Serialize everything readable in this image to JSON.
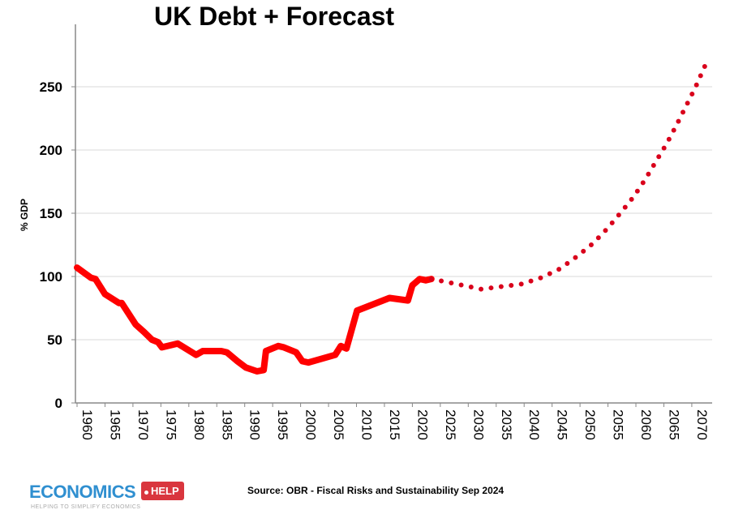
{
  "chart_data": {
    "type": "line",
    "title": "UK Debt + Forecast",
    "ylabel": "% GDP",
    "xlabel": "",
    "ylim": [
      0,
      250
    ],
    "xlim": [
      1960,
      2073
    ],
    "yticks": [
      "0",
      "50",
      "100",
      "150",
      "200",
      "250"
    ],
    "xticks": [
      "1960",
      "1965",
      "1970",
      "1975",
      "1980",
      "1985",
      "1990",
      "1995",
      "2000",
      "2005",
      "2010",
      "2015",
      "2020",
      "2025",
      "2030",
      "2035",
      "2040",
      "2045",
      "2050",
      "2055",
      "2060",
      "2065",
      "2070"
    ],
    "grid": "horizontal",
    "series": [
      {
        "style": "solid",
        "color": "#ff0000",
        "x": [
          1960,
          1962.5,
          1963.3,
          1965,
          1967.5,
          1968,
          1970.5,
          1972,
          1973.4,
          1974.5,
          1975.2,
          1978,
          1981.3,
          1982.5,
          1985.8,
          1986.8,
          1988.7,
          1990.2,
          1992.2,
          1993.4,
          1993.8,
          1996,
          1997,
          1999.2,
          2000.3,
          2001.4,
          2006.2,
          2007.2,
          2008.2,
          2010.1,
          2015.9,
          2019.2,
          2020,
          2021.3,
          2022.4,
          2023.4
        ],
        "y": [
          107,
          99,
          98,
          86,
          79,
          79,
          62,
          56,
          50,
          48,
          44,
          47,
          38,
          41,
          41,
          40,
          33,
          28,
          25,
          26,
          41,
          45,
          44,
          40,
          33,
          32,
          38,
          45,
          43,
          73,
          83,
          81,
          93,
          98,
          97,
          98
        ]
      },
      {
        "style": "dotted",
        "color": "#d9001b",
        "x": [
          2023.4,
          2028,
          2032.3,
          2035.9,
          2039.5,
          2043,
          2046.4,
          2049.5,
          2052.3,
          2054.9,
          2057.4,
          2059.6,
          2061.7,
          2063.6,
          2065.5,
          2067.3,
          2069,
          2070.6,
          2072.9
        ],
        "y": [
          98,
          94,
          90,
          92,
          94,
          99,
          106,
          116,
          126,
          138,
          151,
          163,
          177,
          191,
          205,
          220,
          235,
          249,
          272
        ]
      }
    ]
  },
  "source": "Source: OBR - Fiscal Risks and Sustainability Sep 2024",
  "logo": {
    "word": "ECONOMICS",
    "tag": "HELP",
    "sub": "HELPING TO SIMPLIFY ECONOMICS"
  }
}
